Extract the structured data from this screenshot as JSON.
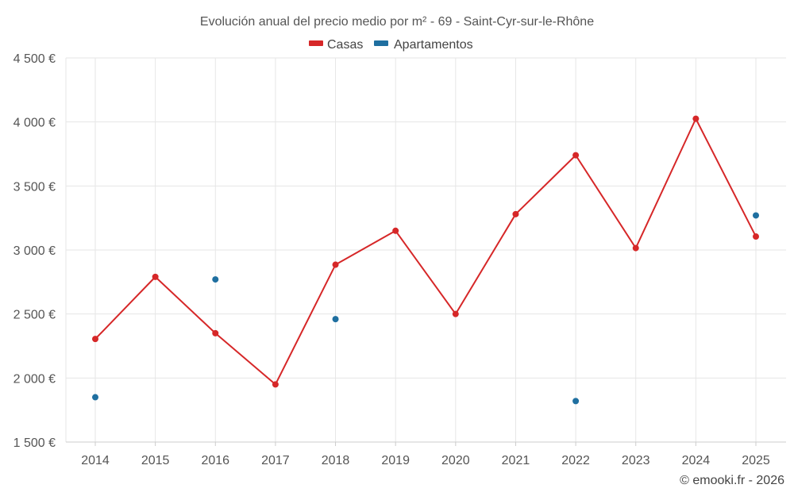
{
  "chart_data": {
    "type": "line",
    "title": "Evolución anual del precio medio por m² - 69 - Saint-Cyr-sur-le-Rhône",
    "xlabel": "",
    "ylabel": "",
    "categories": [
      "2014",
      "2015",
      "2016",
      "2017",
      "2018",
      "2019",
      "2020",
      "2021",
      "2022",
      "2023",
      "2024",
      "2025"
    ],
    "y_ticks": [
      1500,
      2000,
      2500,
      3000,
      3500,
      4000,
      4500
    ],
    "y_tick_labels": [
      "1 500 €",
      "2 000 €",
      "2 500 €",
      "3 000 €",
      "3 500 €",
      "4 000 €",
      "4 500 €"
    ],
    "ylim": [
      1500,
      4500
    ],
    "grid": true,
    "legend_position": "top-center",
    "series": [
      {
        "name": "Casas",
        "color": "#d62728",
        "mode": "lines+markers",
        "values": [
          2305,
          2790,
          2350,
          1950,
          2885,
          3150,
          2500,
          3280,
          3740,
          3015,
          4025,
          3105
        ]
      },
      {
        "name": "Apartamentos",
        "color": "#1f6fa0",
        "mode": "markers",
        "values": [
          1850,
          null,
          2770,
          null,
          2460,
          null,
          null,
          null,
          1820,
          null,
          null,
          3270
        ]
      }
    ],
    "credit": "© emooki.fr - 2026"
  }
}
